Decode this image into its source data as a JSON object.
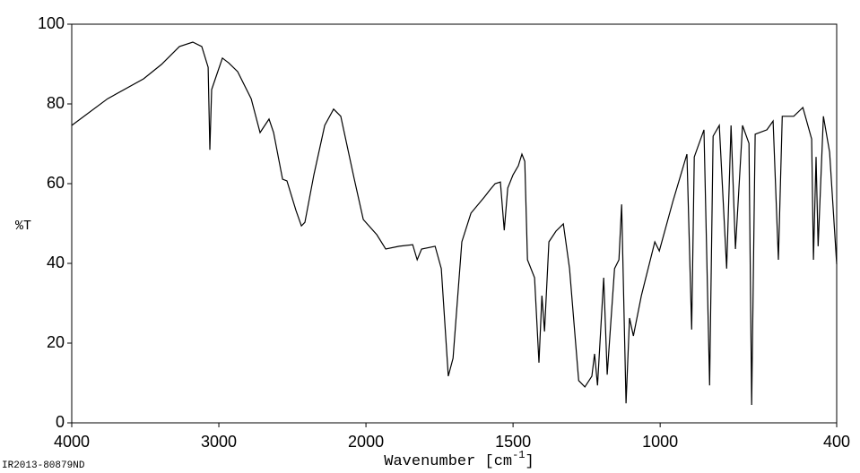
{
  "chart_data": {
    "type": "line",
    "ylabel": "%T",
    "xlabel": [
      "Wavenumber [cm",
      "-1",
      "]"
    ],
    "sample_id": "IR2013-80879ND",
    "color": "#000000",
    "xlim": [
      4000,
      400
    ],
    "x_scale_break": 2000,
    "x_scale_ratio": 2,
    "xticks": [
      4000,
      3000,
      2000,
      1500,
      1000,
      400
    ],
    "ylim": [
      0,
      100
    ],
    "yticks": [
      0,
      20,
      40,
      60,
      80,
      100
    ],
    "x": [
      4000,
      3756,
      3512,
      3390,
      3268,
      3177,
      3116,
      3073,
      3061,
      3049,
      3024,
      2976,
      2933,
      2872,
      2780,
      2720,
      2659,
      2628,
      2567,
      2537,
      2476,
      2439,
      2415,
      2354,
      2280,
      2220,
      2171,
      2079,
      2018,
      1963,
      1933,
      1887,
      1841,
      1826,
      1811,
      1765,
      1744,
      1720,
      1704,
      1674,
      1643,
      1598,
      1579,
      1561,
      1543,
      1530,
      1518,
      1500,
      1482,
      1470,
      1460,
      1451,
      1427,
      1412,
      1402,
      1393,
      1378,
      1354,
      1329,
      1308,
      1277,
      1256,
      1232,
      1223,
      1213,
      1192,
      1180,
      1155,
      1140,
      1131,
      1116,
      1104,
      1091,
      1064,
      1018,
      1003,
      957,
      909,
      893,
      884,
      851,
      832,
      820,
      799,
      774,
      759,
      744,
      720,
      698,
      689,
      677,
      637,
      616,
      598,
      585,
      546,
      515,
      485,
      479,
      470,
      463,
      445,
      424,
      400
    ],
    "values": [
      74.6,
      81.3,
      86.3,
      89.9,
      94.4,
      95.5,
      94.4,
      89.2,
      68.5,
      83.6,
      86.3,
      91.5,
      90.3,
      88.1,
      81.3,
      72.8,
      76.2,
      72.8,
      61.1,
      60.7,
      53.3,
      49.4,
      50.3,
      62.2,
      74.6,
      78.7,
      76.9,
      61.1,
      51.0,
      47.2,
      43.6,
      44.3,
      44.7,
      40.9,
      43.6,
      44.3,
      38.7,
      11.7,
      16.2,
      45.4,
      52.6,
      56.6,
      58.4,
      60.0,
      60.4,
      48.3,
      58.9,
      62.2,
      64.5,
      67.4,
      65.6,
      40.9,
      36.4,
      15.1,
      31.9,
      22.9,
      45.4,
      48.1,
      49.9,
      38.7,
      10.6,
      9.0,
      11.7,
      17.3,
      9.4,
      36.4,
      12.1,
      38.7,
      40.9,
      54.8,
      4.9,
      26.3,
      21.8,
      31.9,
      45.4,
      43.1,
      55.5,
      67.4,
      23.4,
      66.7,
      73.5,
      9.4,
      71.9,
      74.6,
      38.7,
      74.6,
      43.6,
      74.6,
      70.1,
      4.5,
      72.4,
      73.5,
      75.7,
      40.9,
      76.9,
      76.9,
      79.1,
      71.2,
      40.9,
      66.7,
      44.3,
      76.9,
      67.9,
      39.8
    ]
  }
}
